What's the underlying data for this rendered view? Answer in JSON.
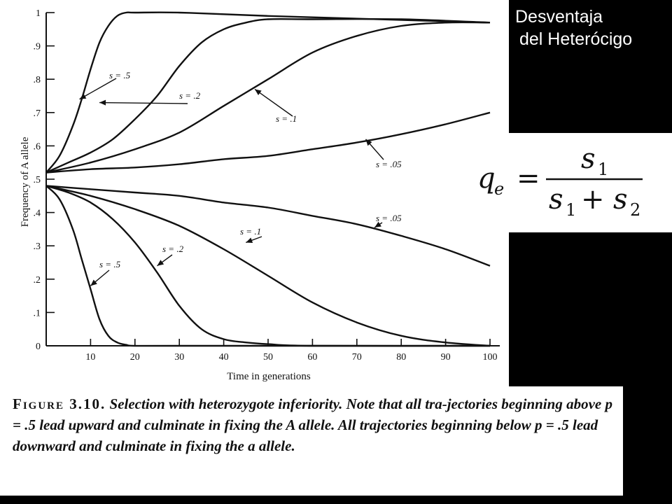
{
  "title": {
    "line1": "Desventaja",
    "line2": "del Heterócigo"
  },
  "formula": {
    "lhs": "q",
    "lhs_sub": "e",
    "equals": "=",
    "numerator": "s",
    "numerator_sub": "1",
    "den_a": "s",
    "den_a_sub": "1",
    "plus": "+",
    "den_b": "s",
    "den_b_sub": "2"
  },
  "caption": {
    "figure_word": "Figure",
    "figure_number": "3.10.",
    "text": "Selection with heterozygote inferiority. Note that all tra-jectories beginning above p = .5 lead upward and culminate in fixing the A allele. All trajectories beginning below p = .5 lead downward and culminate in fixing the a allele."
  },
  "chart_data": {
    "type": "line",
    "xlabel": "Time in generations",
    "ylabel": "Frequency of A allele",
    "xlim": [
      0,
      100
    ],
    "ylim": [
      0,
      1
    ],
    "xticks": [
      10,
      20,
      30,
      40,
      50,
      60,
      70,
      80,
      90,
      100
    ],
    "yticks": [
      0,
      0.1,
      0.2,
      0.3,
      0.4,
      0.5,
      0.6,
      0.7,
      0.8,
      0.9,
      1
    ],
    "ytick_labels": [
      "0",
      ".1",
      ".2",
      ".3",
      ".4",
      ".5",
      ".6",
      ".7",
      ".8",
      ".9",
      "1"
    ],
    "grid": false,
    "legend": "none",
    "series": [
      {
        "name": "s = .5",
        "direction": "up",
        "x": [
          0,
          3,
          6,
          8,
          10,
          12,
          14,
          16,
          18,
          20,
          30,
          50,
          100
        ],
        "y": [
          0.52,
          0.57,
          0.66,
          0.74,
          0.83,
          0.91,
          0.96,
          0.99,
          1.0,
          1.0,
          1.0,
          0.99,
          0.97
        ]
      },
      {
        "name": "s = .2",
        "direction": "up",
        "x": [
          0,
          5,
          10,
          15,
          20,
          25,
          30,
          35,
          40,
          45,
          50,
          60,
          80,
          100
        ],
        "y": [
          0.52,
          0.55,
          0.58,
          0.62,
          0.68,
          0.75,
          0.84,
          0.91,
          0.95,
          0.97,
          0.98,
          0.98,
          0.98,
          0.97
        ]
      },
      {
        "name": "s = .1",
        "direction": "up",
        "x": [
          0,
          10,
          20,
          30,
          40,
          50,
          60,
          70,
          80,
          90,
          100
        ],
        "y": [
          0.52,
          0.55,
          0.59,
          0.64,
          0.72,
          0.8,
          0.88,
          0.93,
          0.96,
          0.97,
          0.97
        ]
      },
      {
        "name": "s = .05",
        "direction": "up",
        "x": [
          0,
          10,
          20,
          30,
          40,
          50,
          60,
          70,
          80,
          90,
          100
        ],
        "y": [
          0.52,
          0.53,
          0.535,
          0.545,
          0.56,
          0.57,
          0.59,
          0.61,
          0.635,
          0.665,
          0.7
        ]
      },
      {
        "name": "s = .05",
        "direction": "down",
        "x": [
          0,
          10,
          20,
          30,
          40,
          50,
          60,
          70,
          80,
          90,
          100
        ],
        "y": [
          0.48,
          0.47,
          0.46,
          0.45,
          0.43,
          0.415,
          0.39,
          0.365,
          0.33,
          0.29,
          0.24
        ]
      },
      {
        "name": "s = .1",
        "direction": "down",
        "x": [
          0,
          10,
          20,
          30,
          40,
          50,
          60,
          70,
          80,
          90,
          100
        ],
        "y": [
          0.48,
          0.45,
          0.41,
          0.36,
          0.29,
          0.21,
          0.13,
          0.07,
          0.03,
          0.01,
          0.0
        ]
      },
      {
        "name": "s = .2",
        "direction": "down",
        "x": [
          0,
          5,
          10,
          15,
          20,
          25,
          30,
          35,
          40,
          45,
          50,
          60,
          100
        ],
        "y": [
          0.48,
          0.46,
          0.43,
          0.38,
          0.31,
          0.22,
          0.12,
          0.05,
          0.02,
          0.01,
          0.005,
          0.0,
          0.0
        ]
      },
      {
        "name": "s = .5",
        "direction": "down",
        "x": [
          0,
          3,
          6,
          8,
          10,
          12,
          14,
          16,
          18,
          20,
          30,
          100
        ],
        "y": [
          0.48,
          0.44,
          0.35,
          0.26,
          0.17,
          0.08,
          0.03,
          0.01,
          0.003,
          0.0,
          0.0,
          0.0
        ]
      }
    ],
    "annotations": [
      "s = .5",
      "s = .2",
      "s = .1",
      "s = .05",
      "s = .05",
      "s = .1",
      "s = .2",
      "s = .5"
    ]
  }
}
